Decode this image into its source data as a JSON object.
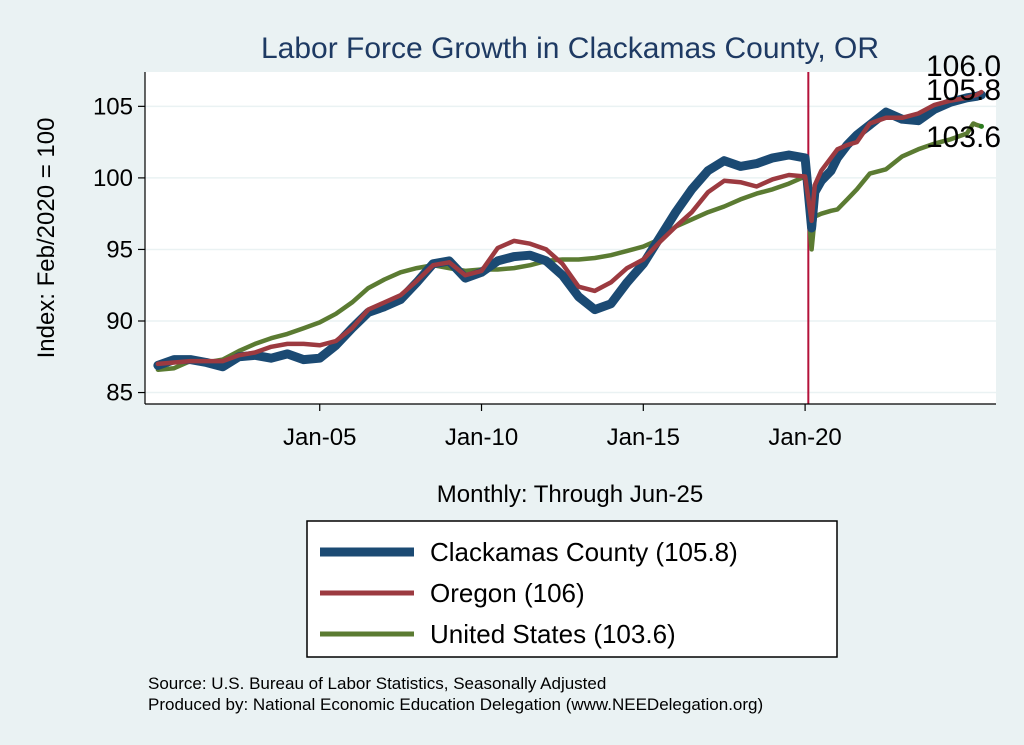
{
  "chart_data": {
    "type": "line",
    "title": "Labor Force Growth in Clackamas  County, OR",
    "xlabel": "Monthly: Through Jun-25",
    "ylabel": "Index: Feb/2020 = 100",
    "ylim": [
      84.2,
      107.4
    ],
    "xlim": [
      1999.6,
      2025.9
    ],
    "yticks": [
      85,
      90,
      95,
      100,
      105
    ],
    "xticks": [
      {
        "x": 2005.0,
        "label": "Jan-05"
      },
      {
        "x": 2010.0,
        "label": "Jan-10"
      },
      {
        "x": 2015.0,
        "label": "Jan-15"
      },
      {
        "x": 2020.0,
        "label": "Jan-20"
      }
    ],
    "vline": 2020.1,
    "grid": true,
    "legend_position": "bottom",
    "series": [
      {
        "name": "Clackamas  County (105.8)",
        "color": "#1b4a73",
        "end_label": "105.8",
        "x": [
          2000.0,
          2000.5,
          2001.0,
          2001.5,
          2002.0,
          2002.5,
          2003.0,
          2003.5,
          2004.0,
          2004.5,
          2005.0,
          2005.5,
          2006.0,
          2006.5,
          2007.0,
          2007.5,
          2008.0,
          2008.5,
          2009.0,
          2009.5,
          2010.0,
          2010.5,
          2011.0,
          2011.5,
          2012.0,
          2012.5,
          2013.0,
          2013.5,
          2014.0,
          2014.5,
          2015.0,
          2015.5,
          2016.0,
          2016.5,
          2017.0,
          2017.5,
          2018.0,
          2018.5,
          2019.0,
          2019.5,
          2020.0,
          2020.2,
          2020.3,
          2020.5,
          2020.8,
          2021.0,
          2021.3,
          2021.6,
          2022.0,
          2022.5,
          2023.0,
          2023.5,
          2024.0,
          2024.5,
          2025.0,
          2025.3,
          2025.45
        ],
        "y": [
          86.9,
          87.3,
          87.3,
          87.1,
          86.8,
          87.5,
          87.6,
          87.4,
          87.7,
          87.3,
          87.4,
          88.3,
          89.5,
          90.6,
          91.0,
          91.5,
          92.7,
          94.0,
          94.2,
          93.0,
          93.4,
          94.2,
          94.5,
          94.6,
          94.2,
          93.2,
          91.7,
          90.8,
          91.2,
          92.7,
          94.0,
          95.8,
          97.6,
          99.2,
          100.5,
          101.2,
          100.8,
          101.0,
          101.4,
          101.6,
          101.4,
          96.5,
          99.0,
          99.8,
          100.5,
          101.4,
          102.3,
          103.0,
          103.7,
          104.6,
          104.1,
          104.0,
          104.8,
          105.3,
          105.6,
          105.7,
          105.8
        ]
      },
      {
        "name": "Oregon (106)",
        "color": "#9c3a40",
        "end_label": "106.0",
        "x": [
          2000.0,
          2000.5,
          2001.0,
          2001.5,
          2002.0,
          2002.5,
          2003.0,
          2003.5,
          2004.0,
          2004.5,
          2005.0,
          2005.5,
          2006.0,
          2006.5,
          2007.0,
          2007.5,
          2008.0,
          2008.5,
          2009.0,
          2009.5,
          2010.0,
          2010.5,
          2011.0,
          2011.5,
          2012.0,
          2012.5,
          2013.0,
          2013.5,
          2014.0,
          2014.5,
          2015.0,
          2015.5,
          2016.0,
          2016.5,
          2017.0,
          2017.5,
          2018.0,
          2018.5,
          2019.0,
          2019.5,
          2020.0,
          2020.2,
          2020.3,
          2020.5,
          2020.8,
          2021.0,
          2021.3,
          2021.6,
          2022.0,
          2022.5,
          2023.0,
          2023.5,
          2024.0,
          2024.5,
          2025.0,
          2025.3,
          2025.45
        ],
        "y": [
          87.0,
          87.1,
          87.2,
          87.2,
          87.2,
          87.6,
          87.8,
          88.2,
          88.4,
          88.4,
          88.3,
          88.6,
          89.5,
          90.8,
          91.3,
          91.8,
          92.8,
          93.9,
          94.1,
          93.2,
          93.5,
          95.1,
          95.6,
          95.4,
          95.0,
          94.0,
          92.4,
          92.1,
          92.7,
          93.7,
          94.3,
          95.5,
          96.6,
          97.6,
          99.0,
          99.8,
          99.7,
          99.4,
          99.9,
          100.2,
          100.1,
          97.0,
          99.5,
          100.5,
          101.4,
          102.0,
          102.3,
          102.5,
          103.8,
          104.2,
          104.2,
          104.5,
          105.1,
          105.4,
          105.6,
          105.8,
          106.0
        ]
      },
      {
        "name": "United States (103.6)",
        "color": "#5b7b32",
        "end_label": "103.6",
        "x": [
          2000.0,
          2000.5,
          2001.0,
          2001.5,
          2002.0,
          2002.5,
          2003.0,
          2003.5,
          2004.0,
          2004.5,
          2005.0,
          2005.5,
          2006.0,
          2006.5,
          2007.0,
          2007.5,
          2008.0,
          2008.5,
          2009.0,
          2009.5,
          2010.0,
          2010.5,
          2011.0,
          2011.5,
          2012.0,
          2012.5,
          2013.0,
          2013.5,
          2014.0,
          2014.5,
          2015.0,
          2015.5,
          2016.0,
          2016.5,
          2017.0,
          2017.5,
          2018.0,
          2018.5,
          2019.0,
          2019.5,
          2020.0,
          2020.2,
          2020.3,
          2020.5,
          2020.8,
          2021.0,
          2021.3,
          2021.6,
          2022.0,
          2022.5,
          2023.0,
          2023.5,
          2024.0,
          2024.5,
          2025.0,
          2025.2,
          2025.3,
          2025.45
        ],
        "y": [
          86.6,
          86.7,
          87.2,
          87.1,
          87.3,
          87.9,
          88.4,
          88.8,
          89.1,
          89.5,
          89.9,
          90.5,
          91.3,
          92.3,
          92.9,
          93.4,
          93.7,
          93.9,
          93.7,
          93.5,
          93.6,
          93.6,
          93.7,
          93.9,
          94.2,
          94.3,
          94.3,
          94.4,
          94.6,
          94.9,
          95.2,
          95.7,
          96.6,
          97.1,
          97.6,
          98.0,
          98.5,
          98.9,
          99.2,
          99.6,
          100.1,
          95.0,
          97.3,
          97.5,
          97.7,
          97.8,
          98.5,
          99.2,
          100.3,
          100.6,
          101.5,
          102.0,
          102.4,
          102.7,
          103.1,
          103.8,
          103.7,
          103.6
        ]
      }
    ]
  },
  "footer": {
    "source": "Source: U.S. Bureau of Labor Statistics, Seasonally Adjusted",
    "produced": "Produced by: National Economic Education Delegation (www.NEEDelegation.org)"
  }
}
